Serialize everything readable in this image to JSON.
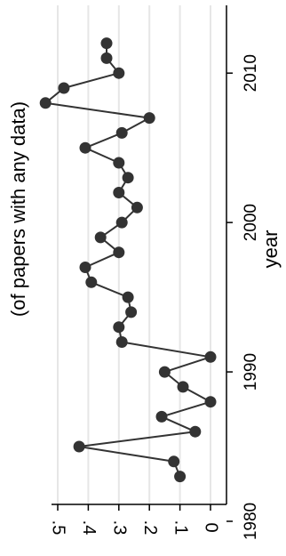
{
  "chart_data": {
    "type": "line",
    "orientation": "rotated-90",
    "title": "",
    "xlabel": "year",
    "ylabel": "(of papers with any data)",
    "x": [
      1983,
      1984,
      1985,
      1986,
      1987,
      1988,
      1989,
      1990,
      1991,
      1992,
      1993,
      1994,
      1995,
      1996,
      1997,
      1998,
      1999,
      2000,
      2001,
      2002,
      2003,
      2004,
      2005,
      2006,
      2007,
      2008,
      2009,
      2010,
      2011,
      2012
    ],
    "values": [
      0.1,
      0.12,
      0.43,
      0.05,
      0.16,
      0.0,
      0.09,
      0.15,
      0.0,
      0.29,
      0.3,
      0.26,
      0.27,
      0.39,
      0.41,
      0.3,
      0.36,
      0.29,
      0.24,
      0.3,
      0.27,
      0.3,
      0.41,
      0.29,
      0.2,
      0.54,
      0.48,
      0.3,
      0.34,
      0.34
    ],
    "xlim": [
      1980,
      2012
    ],
    "ylim": [
      0,
      0.5
    ],
    "xticks": [
      "1980",
      "1990",
      "2000",
      "2010"
    ],
    "yticks": [
      "0",
      ".1",
      ".2",
      ".3",
      ".4",
      ".5"
    ],
    "grid": true,
    "colors": {
      "line": "#333333",
      "marker": "#333333",
      "grid": "#e6e6e6",
      "axis": "#000000"
    }
  }
}
